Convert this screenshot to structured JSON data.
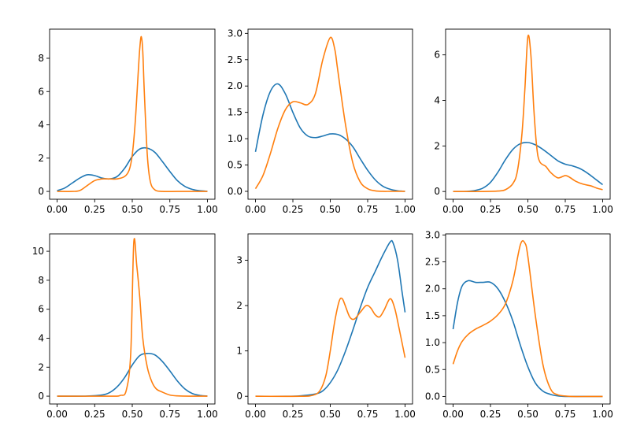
{
  "chart_data": [
    {
      "type": "line",
      "xlim": [
        -0.05,
        1.05
      ],
      "ylim": [
        -0.47,
        9.75
      ],
      "xticks": [
        "0.00",
        "0.25",
        "0.50",
        "0.75",
        "1.00"
      ],
      "yticks": [
        "0",
        "2",
        "4",
        "6",
        "8"
      ],
      "series": [
        {
          "color": "#1f77b4",
          "x": [
            0,
            0.05,
            0.1,
            0.15,
            0.2,
            0.25,
            0.3,
            0.35,
            0.4,
            0.45,
            0.5,
            0.55,
            0.6,
            0.65,
            0.7,
            0.75,
            0.8,
            0.85,
            0.9,
            0.95,
            1.0
          ],
          "y": [
            0.05,
            0.2,
            0.5,
            0.8,
            1.0,
            0.95,
            0.8,
            0.75,
            0.9,
            1.4,
            2.1,
            2.55,
            2.6,
            2.35,
            1.8,
            1.2,
            0.65,
            0.3,
            0.12,
            0.04,
            0.01
          ]
        },
        {
          "color": "#ff7f0e",
          "x": [
            0,
            0.1,
            0.15,
            0.2,
            0.25,
            0.3,
            0.35,
            0.4,
            0.45,
            0.48,
            0.5,
            0.52,
            0.54,
            0.55,
            0.56,
            0.57,
            0.58,
            0.6,
            0.62,
            0.65,
            0.7,
            0.8,
            0.9,
            1.0
          ],
          "y": [
            0.0,
            0.0,
            0.05,
            0.35,
            0.65,
            0.75,
            0.75,
            0.75,
            0.9,
            1.3,
            2.2,
            4.2,
            7.2,
            8.6,
            9.3,
            8.4,
            6.0,
            2.2,
            0.6,
            0.1,
            0.0,
            0.0,
            0.0,
            0.0
          ]
        }
      ]
    },
    {
      "type": "line",
      "xlim": [
        -0.05,
        1.05
      ],
      "ylim": [
        -0.15,
        3.08
      ],
      "xticks": [
        "0.00",
        "0.25",
        "0.50",
        "0.75",
        "1.00"
      ],
      "yticks": [
        "0.0",
        "0.5",
        "1.0",
        "1.5",
        "2.0",
        "2.5",
        "3.0"
      ],
      "series": [
        {
          "color": "#1f77b4",
          "x": [
            0,
            0.05,
            0.1,
            0.15,
            0.2,
            0.25,
            0.3,
            0.35,
            0.4,
            0.45,
            0.5,
            0.55,
            0.6,
            0.65,
            0.7,
            0.75,
            0.8,
            0.85,
            0.9,
            0.95,
            1.0
          ],
          "y": [
            0.75,
            1.45,
            1.9,
            2.04,
            1.85,
            1.5,
            1.2,
            1.05,
            1.02,
            1.05,
            1.09,
            1.08,
            1.0,
            0.85,
            0.62,
            0.4,
            0.22,
            0.1,
            0.04,
            0.01,
            0.0
          ]
        },
        {
          "color": "#ff7f0e",
          "x": [
            0,
            0.05,
            0.1,
            0.15,
            0.2,
            0.25,
            0.3,
            0.35,
            0.4,
            0.45,
            0.5,
            0.53,
            0.55,
            0.6,
            0.65,
            0.7,
            0.75,
            0.8,
            0.85,
            0.9,
            0.95,
            1.0
          ],
          "y": [
            0.05,
            0.3,
            0.72,
            1.2,
            1.55,
            1.7,
            1.68,
            1.65,
            1.85,
            2.5,
            2.92,
            2.7,
            2.3,
            1.3,
            0.55,
            0.18,
            0.05,
            0.01,
            0.0,
            0.0,
            0.0,
            0.0
          ]
        }
      ]
    },
    {
      "type": "line",
      "xlim": [
        -0.05,
        1.05
      ],
      "ylim": [
        -0.34,
        7.13
      ],
      "xticks": [
        "0.00",
        "0.25",
        "0.50",
        "0.75",
        "1.00"
      ],
      "yticks": [
        "0",
        "2",
        "4",
        "6"
      ],
      "series": [
        {
          "color": "#1f77b4",
          "x": [
            0,
            0.05,
            0.1,
            0.15,
            0.2,
            0.25,
            0.3,
            0.35,
            0.4,
            0.45,
            0.5,
            0.55,
            0.6,
            0.65,
            0.7,
            0.75,
            0.8,
            0.85,
            0.9,
            0.95,
            1.0
          ],
          "y": [
            0.0,
            0.0,
            0.01,
            0.05,
            0.15,
            0.4,
            0.85,
            1.4,
            1.85,
            2.1,
            2.15,
            2.05,
            1.85,
            1.6,
            1.35,
            1.2,
            1.12,
            1.0,
            0.8,
            0.55,
            0.3
          ]
        },
        {
          "color": "#ff7f0e",
          "x": [
            0,
            0.2,
            0.3,
            0.35,
            0.4,
            0.43,
            0.46,
            0.48,
            0.5,
            0.52,
            0.54,
            0.56,
            0.58,
            0.62,
            0.65,
            0.7,
            0.75,
            0.78,
            0.82,
            0.87,
            0.92,
            0.96,
            1.0
          ],
          "y": [
            0.0,
            0.0,
            0.02,
            0.08,
            0.35,
            0.9,
            2.5,
            4.5,
            6.8,
            6.0,
            3.6,
            1.9,
            1.3,
            1.1,
            0.85,
            0.6,
            0.7,
            0.62,
            0.45,
            0.32,
            0.25,
            0.15,
            0.08
          ]
        }
      ]
    },
    {
      "type": "line",
      "xlim": [
        -0.05,
        1.05
      ],
      "ylim": [
        -0.54,
        11.2
      ],
      "xticks": [
        "0.00",
        "0.25",
        "0.50",
        "0.75",
        "1.00"
      ],
      "yticks": [
        "0",
        "2",
        "4",
        "6",
        "8",
        "10"
      ],
      "series": [
        {
          "color": "#1f77b4",
          "x": [
            0,
            0.1,
            0.2,
            0.3,
            0.35,
            0.4,
            0.45,
            0.5,
            0.55,
            0.6,
            0.65,
            0.7,
            0.75,
            0.8,
            0.85,
            0.9,
            0.95,
            1.0
          ],
          "y": [
            0.0,
            0.0,
            0.01,
            0.08,
            0.25,
            0.65,
            1.3,
            2.15,
            2.8,
            2.95,
            2.85,
            2.4,
            1.75,
            1.05,
            0.5,
            0.18,
            0.05,
            0.01
          ]
        },
        {
          "color": "#ff7f0e",
          "x": [
            0,
            0.35,
            0.42,
            0.46,
            0.49,
            0.51,
            0.53,
            0.55,
            0.57,
            0.6,
            0.63,
            0.66,
            0.7,
            0.75,
            0.8,
            0.9,
            1.0
          ],
          "y": [
            0.0,
            0.0,
            0.05,
            0.4,
            3.0,
            10.6,
            9.0,
            6.8,
            4.0,
            2.0,
            1.0,
            0.5,
            0.28,
            0.08,
            0.02,
            0.0,
            0.0
          ]
        }
      ]
    },
    {
      "type": "line",
      "xlim": [
        -0.05,
        1.05
      ],
      "ylim": [
        -0.17,
        3.58
      ],
      "xticks": [
        "0.00",
        "0.25",
        "0.50",
        "0.75",
        "1.00"
      ],
      "yticks": [
        "0",
        "1",
        "2",
        "3"
      ],
      "series": [
        {
          "color": "#1f77b4",
          "x": [
            0,
            0.2,
            0.3,
            0.4,
            0.45,
            0.5,
            0.55,
            0.6,
            0.65,
            0.7,
            0.75,
            0.8,
            0.85,
            0.9,
            0.92,
            0.95,
            0.98,
            1.0
          ],
          "y": [
            0.0,
            0.0,
            0.01,
            0.05,
            0.12,
            0.3,
            0.58,
            0.98,
            1.45,
            1.95,
            2.4,
            2.75,
            3.1,
            3.4,
            3.38,
            3.0,
            2.3,
            1.85
          ]
        },
        {
          "color": "#ff7f0e",
          "x": [
            0,
            0.3,
            0.38,
            0.43,
            0.47,
            0.5,
            0.53,
            0.56,
            0.58,
            0.6,
            0.63,
            0.66,
            0.7,
            0.74,
            0.77,
            0.8,
            0.83,
            0.86,
            0.9,
            0.93,
            0.96,
            1.0
          ],
          "y": [
            0.0,
            0.0,
            0.02,
            0.12,
            0.45,
            1.0,
            1.65,
            2.1,
            2.15,
            2.0,
            1.75,
            1.7,
            1.85,
            2.0,
            1.95,
            1.8,
            1.75,
            1.9,
            2.15,
            1.95,
            1.5,
            0.85
          ]
        }
      ]
    },
    {
      "type": "line",
      "xlim": [
        -0.05,
        1.05
      ],
      "ylim": [
        -0.14,
        3.02
      ],
      "xticks": [
        "0.00",
        "0.25",
        "0.50",
        "0.75",
        "1.00"
      ],
      "yticks": [
        "0.0",
        "0.5",
        "1.0",
        "1.5",
        "2.0",
        "2.5",
        "3.0"
      ],
      "series": [
        {
          "color": "#1f77b4",
          "x": [
            0,
            0.03,
            0.06,
            0.1,
            0.15,
            0.2,
            0.25,
            0.3,
            0.35,
            0.4,
            0.45,
            0.5,
            0.55,
            0.6,
            0.65,
            0.7,
            0.75,
            0.8,
            0.9,
            1.0
          ],
          "y": [
            1.25,
            1.75,
            2.05,
            2.15,
            2.12,
            2.12,
            2.12,
            2.0,
            1.75,
            1.4,
            0.95,
            0.55,
            0.25,
            0.1,
            0.04,
            0.01,
            0.0,
            0.0,
            0.0,
            0.0
          ]
        },
        {
          "color": "#ff7f0e",
          "x": [
            0,
            0.03,
            0.06,
            0.1,
            0.15,
            0.2,
            0.25,
            0.3,
            0.35,
            0.4,
            0.45,
            0.48,
            0.5,
            0.55,
            0.6,
            0.65,
            0.7,
            0.8,
            0.9,
            1.0
          ],
          "y": [
            0.6,
            0.85,
            1.02,
            1.15,
            1.25,
            1.32,
            1.4,
            1.52,
            1.72,
            2.15,
            2.82,
            2.85,
            2.6,
            1.5,
            0.6,
            0.15,
            0.03,
            0.0,
            0.0,
            0.0
          ]
        }
      ]
    }
  ]
}
